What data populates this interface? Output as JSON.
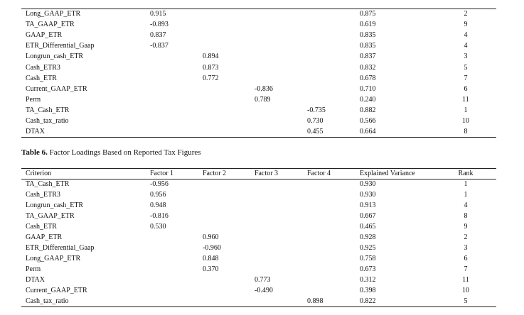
{
  "table_top": {
    "rows": [
      [
        "Long_GAAP_ETR",
        "0.915",
        null,
        null,
        null,
        "0.875",
        "2"
      ],
      [
        "TA_GAAP_ETR",
        "-0.893",
        null,
        null,
        null,
        "0.619",
        "9"
      ],
      [
        "GAAP_ETR",
        "0.837",
        null,
        null,
        null,
        "0.835",
        "4"
      ],
      [
        "ETR_Differential_Gaap",
        "-0.837",
        null,
        null,
        null,
        "0.835",
        "4"
      ],
      [
        "Longrun_cash_ETR",
        null,
        "0.894",
        null,
        null,
        "0.837",
        "3"
      ],
      [
        "Cash_ETR3",
        null,
        "0.873",
        null,
        null,
        "0.832",
        "5"
      ],
      [
        "Cash_ETR",
        null,
        "0.772",
        null,
        null,
        "0.678",
        "7"
      ],
      [
        "Current_GAAP_ETR",
        null,
        null,
        "-0.836",
        null,
        "0.710",
        "6"
      ],
      [
        "Perm",
        null,
        null,
        "0.789",
        null,
        "0.240",
        "11"
      ],
      [
        "TA_Cash_ETR",
        null,
        null,
        null,
        "-0.735",
        "0.882",
        "1"
      ],
      [
        "Cash_tax_ratio",
        null,
        null,
        null,
        "0.730",
        "0.566",
        "10"
      ],
      [
        "DTAX",
        null,
        null,
        null,
        "0.455",
        "0.664",
        "8"
      ]
    ]
  },
  "table6": {
    "label": "Table 6.",
    "title": "Factor Loadings Based on Reported Tax Figures",
    "header": [
      "Criterion",
      "Factor 1",
      "Factor 2",
      "Factor 3",
      "Factor 4",
      "Explained Variance",
      "Rank"
    ],
    "rows": [
      [
        "TA_Cash_ETR",
        "-0.956",
        null,
        null,
        null,
        "0.930",
        "1"
      ],
      [
        "Cash_ETR3",
        "0.956",
        null,
        null,
        null,
        "0.930",
        "1"
      ],
      [
        "Longrun_cash_ETR",
        "0.948",
        null,
        null,
        null,
        "0.913",
        "4"
      ],
      [
        "TA_GAAP_ETR",
        "-0.816",
        null,
        null,
        null,
        "0.667",
        "8"
      ],
      [
        "Cash_ETR",
        "0.530",
        null,
        null,
        null,
        "0.465",
        "9"
      ],
      [
        "GAAP_ETR",
        null,
        "0.960",
        null,
        null,
        "0.928",
        "2"
      ],
      [
        "ETR_Differential_Gaap",
        null,
        "-0.960",
        null,
        null,
        "0.925",
        "3"
      ],
      [
        "Long_GAAP_ETR",
        null,
        "0.848",
        null,
        null,
        "0.758",
        "6"
      ],
      [
        "Perm",
        null,
        "0.370",
        null,
        null,
        "0.673",
        "7"
      ],
      [
        "DTAX",
        null,
        null,
        "0.773",
        null,
        "0.312",
        "11"
      ],
      [
        "Current_GAAP_ETR",
        null,
        null,
        "-0.490",
        null,
        "0.398",
        "10"
      ],
      [
        "Cash_tax_ratio",
        null,
        null,
        null,
        "0.898",
        "0.822",
        "5"
      ]
    ]
  }
}
